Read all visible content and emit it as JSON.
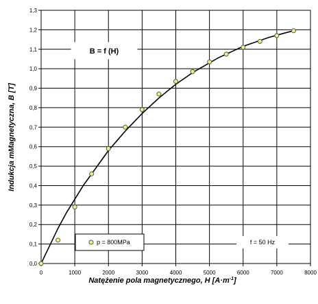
{
  "chart_data": {
    "type": "scatter",
    "xlabel": "Natężenie pola magnetycznego,  H [A·m",
    "xlabel_sup": "-1",
    "xlabel_end": "]",
    "ylabel": "Indukcja mMagnetyczna, B [T]",
    "xlim": [
      0,
      8000
    ],
    "ylim": [
      0,
      1.3
    ],
    "x_ticks": [
      0,
      1000,
      2000,
      3000,
      4000,
      5000,
      6000,
      7000,
      8000
    ],
    "x_tick_labels": [
      "0",
      "1000",
      "2000",
      "3000",
      "4000",
      "5000",
      "6000",
      "7000",
      "8000"
    ],
    "y_ticks": [
      0,
      0.1,
      0.2,
      0.3,
      0.4,
      0.5,
      0.6,
      0.7,
      0.8,
      0.9,
      1.0,
      1.1,
      1.2,
      1.3
    ],
    "y_tick_labels": [
      "0,0",
      "0,1",
      "0,2",
      "0,3",
      "0,4",
      "0,5",
      "0,6",
      "0,7",
      "0,8",
      "0,9",
      "1,0",
      "1,1",
      "1,2",
      "1,3"
    ],
    "grid": true,
    "series": [
      {
        "name": "p = 800MPa",
        "marker_color": "#f5f07a",
        "x": [
          0,
          500,
          1000,
          1500,
          2000,
          2500,
          3000,
          3500,
          4000,
          4500,
          5000,
          5500,
          6000,
          6500,
          7000,
          7500
        ],
        "y": [
          0.0,
          0.12,
          0.29,
          0.46,
          0.59,
          0.7,
          0.79,
          0.87,
          0.935,
          0.985,
          1.035,
          1.075,
          1.11,
          1.14,
          1.17,
          1.195
        ]
      }
    ],
    "fit_curve": {
      "x": [
        0,
        250,
        500,
        750,
        1000,
        1250,
        1500,
        1750,
        2000,
        2250,
        2500,
        2750,
        3000,
        3250,
        3500,
        3750,
        4000,
        4250,
        4500,
        4750,
        5000,
        5250,
        5500,
        5750,
        6000,
        6250,
        6500,
        6750,
        7000,
        7250,
        7500
      ],
      "y": [
        0.0,
        0.09,
        0.18,
        0.26,
        0.33,
        0.4,
        0.46,
        0.52,
        0.58,
        0.63,
        0.68,
        0.725,
        0.77,
        0.81,
        0.85,
        0.885,
        0.92,
        0.95,
        0.98,
        1.005,
        1.03,
        1.055,
        1.075,
        1.095,
        1.115,
        1.13,
        1.145,
        1.16,
        1.172,
        1.184,
        1.195
      ]
    },
    "annotations": {
      "equation": "B = f (H)",
      "legend_label": "p = 800MPa",
      "frequency": "f = 50 Hz"
    }
  },
  "colors": {
    "marker_fill": "#f5f07a",
    "marker_stroke": "#555555",
    "grid": "#000000",
    "curve": "#000000"
  }
}
